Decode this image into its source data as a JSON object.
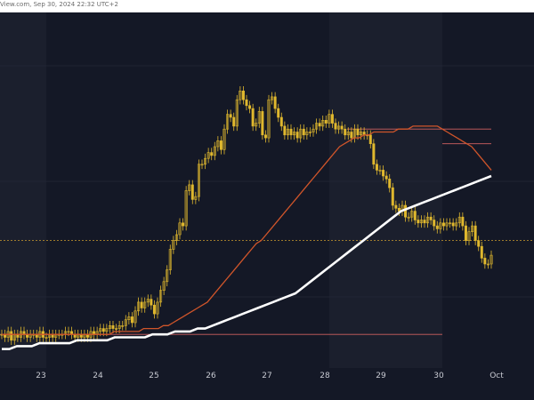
{
  "header": {
    "source": "View.com, Sep 30, 2024 22:32 UTC+2"
  },
  "chart_data": {
    "type": "candlestick",
    "title": "",
    "xlabel": "",
    "ylabel": "",
    "x_ticks": [
      "23",
      "24",
      "25",
      "26",
      "27",
      "28",
      "29",
      "30",
      "Oct"
    ],
    "ylim": [
      0,
      100
    ],
    "colors": {
      "background": "#141826",
      "session_band": "#1b1f2d",
      "candle": "#e0b82e",
      "ma_fast": "#d0552a",
      "ma_slow": "#ffffff",
      "price_line": "#c99a2f",
      "level_line": "#d06060",
      "grid": "#2a2f3e"
    },
    "candles_close": [
      6,
      5,
      7,
      4,
      6,
      5,
      7,
      6,
      5,
      6,
      6,
      5,
      7,
      5,
      5,
      6,
      5,
      6,
      6,
      6,
      7,
      7,
      6,
      5,
      6,
      5,
      6,
      5,
      7,
      6,
      7,
      8,
      7,
      8,
      9,
      8,
      8,
      9,
      9,
      11,
      12,
      10,
      14,
      17,
      15,
      17,
      18,
      16,
      13,
      17,
      21,
      24,
      28,
      35,
      38,
      40,
      44,
      43,
      55,
      57,
      52,
      53,
      64,
      64,
      66,
      68,
      67,
      70,
      72,
      69,
      76,
      81,
      80,
      77,
      86,
      89,
      86,
      84,
      83,
      77,
      78,
      82,
      74,
      73,
      86,
      87,
      83,
      80,
      77,
      74,
      76,
      74,
      75,
      73,
      76,
      74,
      75,
      75,
      76,
      78,
      77,
      79,
      78,
      81,
      78,
      76,
      77,
      76,
      74,
      75,
      73,
      76,
      74,
      75,
      74,
      74,
      71,
      64,
      62,
      62,
      60,
      59,
      56,
      50,
      49,
      48,
      50,
      46,
      46,
      48,
      45,
      44,
      45,
      44,
      46,
      45,
      43,
      42,
      44,
      43,
      44,
      44,
      43,
      44,
      46,
      43,
      38,
      41,
      43,
      38,
      36,
      32,
      30,
      30,
      33
    ],
    "ma_fast_values": [
      6,
      6,
      6,
      6,
      6,
      6,
      6,
      6,
      6,
      6,
      6,
      6,
      6,
      6,
      6,
      6,
      6,
      6,
      6,
      6,
      6,
      6,
      6,
      7,
      7,
      7,
      7,
      7,
      7,
      8,
      8,
      8,
      8,
      9,
      9,
      10,
      11,
      12,
      13,
      14,
      15,
      16,
      17,
      19,
      21,
      23,
      25,
      27,
      29,
      31,
      33,
      35,
      37,
      38,
      40,
      42,
      44,
      46,
      48,
      50,
      52,
      54,
      56,
      58,
      60,
      62,
      64,
      66,
      68,
      70,
      71,
      72,
      73,
      73,
      74,
      74,
      75,
      75,
      75,
      75,
      75,
      76,
      76,
      76,
      77,
      77,
      77,
      77,
      77,
      77,
      76,
      75,
      74,
      73,
      72,
      71,
      70,
      68,
      66,
      64,
      62
    ],
    "ma_slow_values": [
      1,
      1,
      2,
      2,
      2,
      3,
      3,
      3,
      3,
      3,
      4,
      4,
      4,
      4,
      4,
      5,
      5,
      5,
      5,
      5,
      6,
      6,
      6,
      7,
      7,
      7,
      8,
      8,
      9,
      10,
      11,
      12,
      13,
      14,
      15,
      16,
      17,
      18,
      19,
      20,
      22,
      24,
      26,
      28,
      30,
      32,
      34,
      36,
      38,
      40,
      42,
      44,
      46,
      48,
      49,
      50,
      51,
      52,
      53,
      54,
      55,
      56,
      57,
      58,
      59,
      60
    ],
    "price_level": 38,
    "level_lines": [
      76,
      71,
      6
    ],
    "grid": true
  }
}
